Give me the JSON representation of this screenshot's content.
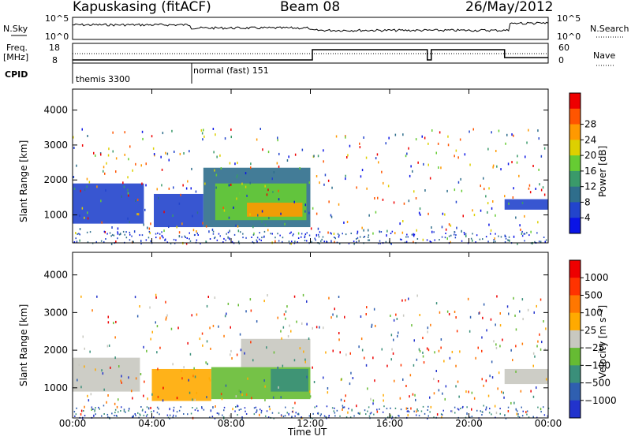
{
  "header": {
    "station": "Kapuskasing (fitACF)",
    "beam": "Beam 08",
    "date": "26/May/2012"
  },
  "summary": {
    "left_labels": {
      "nsky": "N.Sky",
      "freq": "Freq.",
      "mhz": "[MHz]",
      "cpid": "CPID"
    },
    "right_labels": {
      "nsearch": "N.Search",
      "nave": "Nave"
    },
    "noise_ticks_left": [
      "10^5",
      "10^0"
    ],
    "noise_ticks_right": [
      "10^5",
      "10^0"
    ],
    "freq_ticks": [
      "18",
      "8"
    ],
    "nave_ticks": [
      "60",
      "0"
    ],
    "cpid_segments": [
      {
        "label": "themis 3300",
        "start": "00:00",
        "end": "06:00"
      },
      {
        "label": "normal (fast) 151",
        "start": "06:00",
        "end": "24:00"
      }
    ]
  },
  "chart_data": [
    {
      "type": "heatmap",
      "panel": "power",
      "ylabel": "Slant Range [km]",
      "yticks": [
        "1000",
        "2000",
        "3000",
        "4000"
      ],
      "ylim": [
        200,
        4600
      ],
      "colorbar": {
        "label": "Power [dB]",
        "ticks": [
          "4",
          "8",
          "12",
          "16",
          "20",
          "24",
          "28"
        ],
        "colors": [
          "#0a14e6",
          "#2244cc",
          "#2f6e8c",
          "#3a9a6a",
          "#66cc33",
          "#ddd000",
          "#ff9900",
          "#ff5500",
          "#ee0000"
        ]
      },
      "regions": [
        {
          "t0": 0.0,
          "t1": 3.6,
          "r0": 750,
          "r1": 1900,
          "color": "#2244cc"
        },
        {
          "t0": 4.1,
          "t1": 6.6,
          "r0": 650,
          "r1": 1600,
          "color": "#2244cc"
        },
        {
          "t0": 6.6,
          "t1": 12.0,
          "r0": 650,
          "r1": 2350,
          "color": "#2f6e8c"
        },
        {
          "t0": 7.2,
          "t1": 11.8,
          "r0": 850,
          "r1": 1900,
          "color": "#66cc33"
        },
        {
          "t0": 8.8,
          "t1": 11.6,
          "r0": 950,
          "r1": 1350,
          "color": "#ff9900"
        },
        {
          "t0": 21.8,
          "t1": 24.0,
          "r0": 1150,
          "r1": 1450,
          "color": "#2244cc"
        }
      ]
    },
    {
      "type": "heatmap",
      "panel": "velocity",
      "xlabel": "Time UT",
      "xticks": [
        "00:00",
        "04:00",
        "08:00",
        "12:00",
        "16:00",
        "20:00",
        "00:00"
      ],
      "ylabel": "Slant Range [km]",
      "yticks": [
        "1000",
        "2000",
        "3000",
        "4000"
      ],
      "ylim": [
        200,
        4600
      ],
      "colorbar": {
        "label": "Velocity [m s⁻¹]",
        "ticks": [
          "1000",
          "500",
          "100",
          "25",
          "−25",
          "−100",
          "−500",
          "−1000"
        ],
        "colors": [
          "#2233cc",
          "#2f5fb0",
          "#3a8f7a",
          "#66bb33",
          "#c8c8c0",
          "#ffaa00",
          "#ff7700",
          "#ff3300",
          "#ee0000"
        ]
      },
      "regions": [
        {
          "t0": 0.0,
          "t1": 3.4,
          "r0": 900,
          "r1": 1800,
          "color": "#c8c8c0"
        },
        {
          "t0": 4.0,
          "t1": 7.0,
          "r0": 650,
          "r1": 1500,
          "color": "#ffaa00"
        },
        {
          "t0": 7.0,
          "t1": 12.0,
          "r0": 700,
          "r1": 1550,
          "color": "#66bb33"
        },
        {
          "t0": 8.5,
          "t1": 12.0,
          "r0": 1550,
          "r1": 2300,
          "color": "#c8c8c0"
        },
        {
          "t0": 10.0,
          "t1": 11.9,
          "r0": 900,
          "r1": 1500,
          "color": "#3a8f7a"
        },
        {
          "t0": 21.8,
          "t1": 24.0,
          "r0": 1100,
          "r1": 1500,
          "color": "#c8c8c0"
        }
      ]
    }
  ]
}
